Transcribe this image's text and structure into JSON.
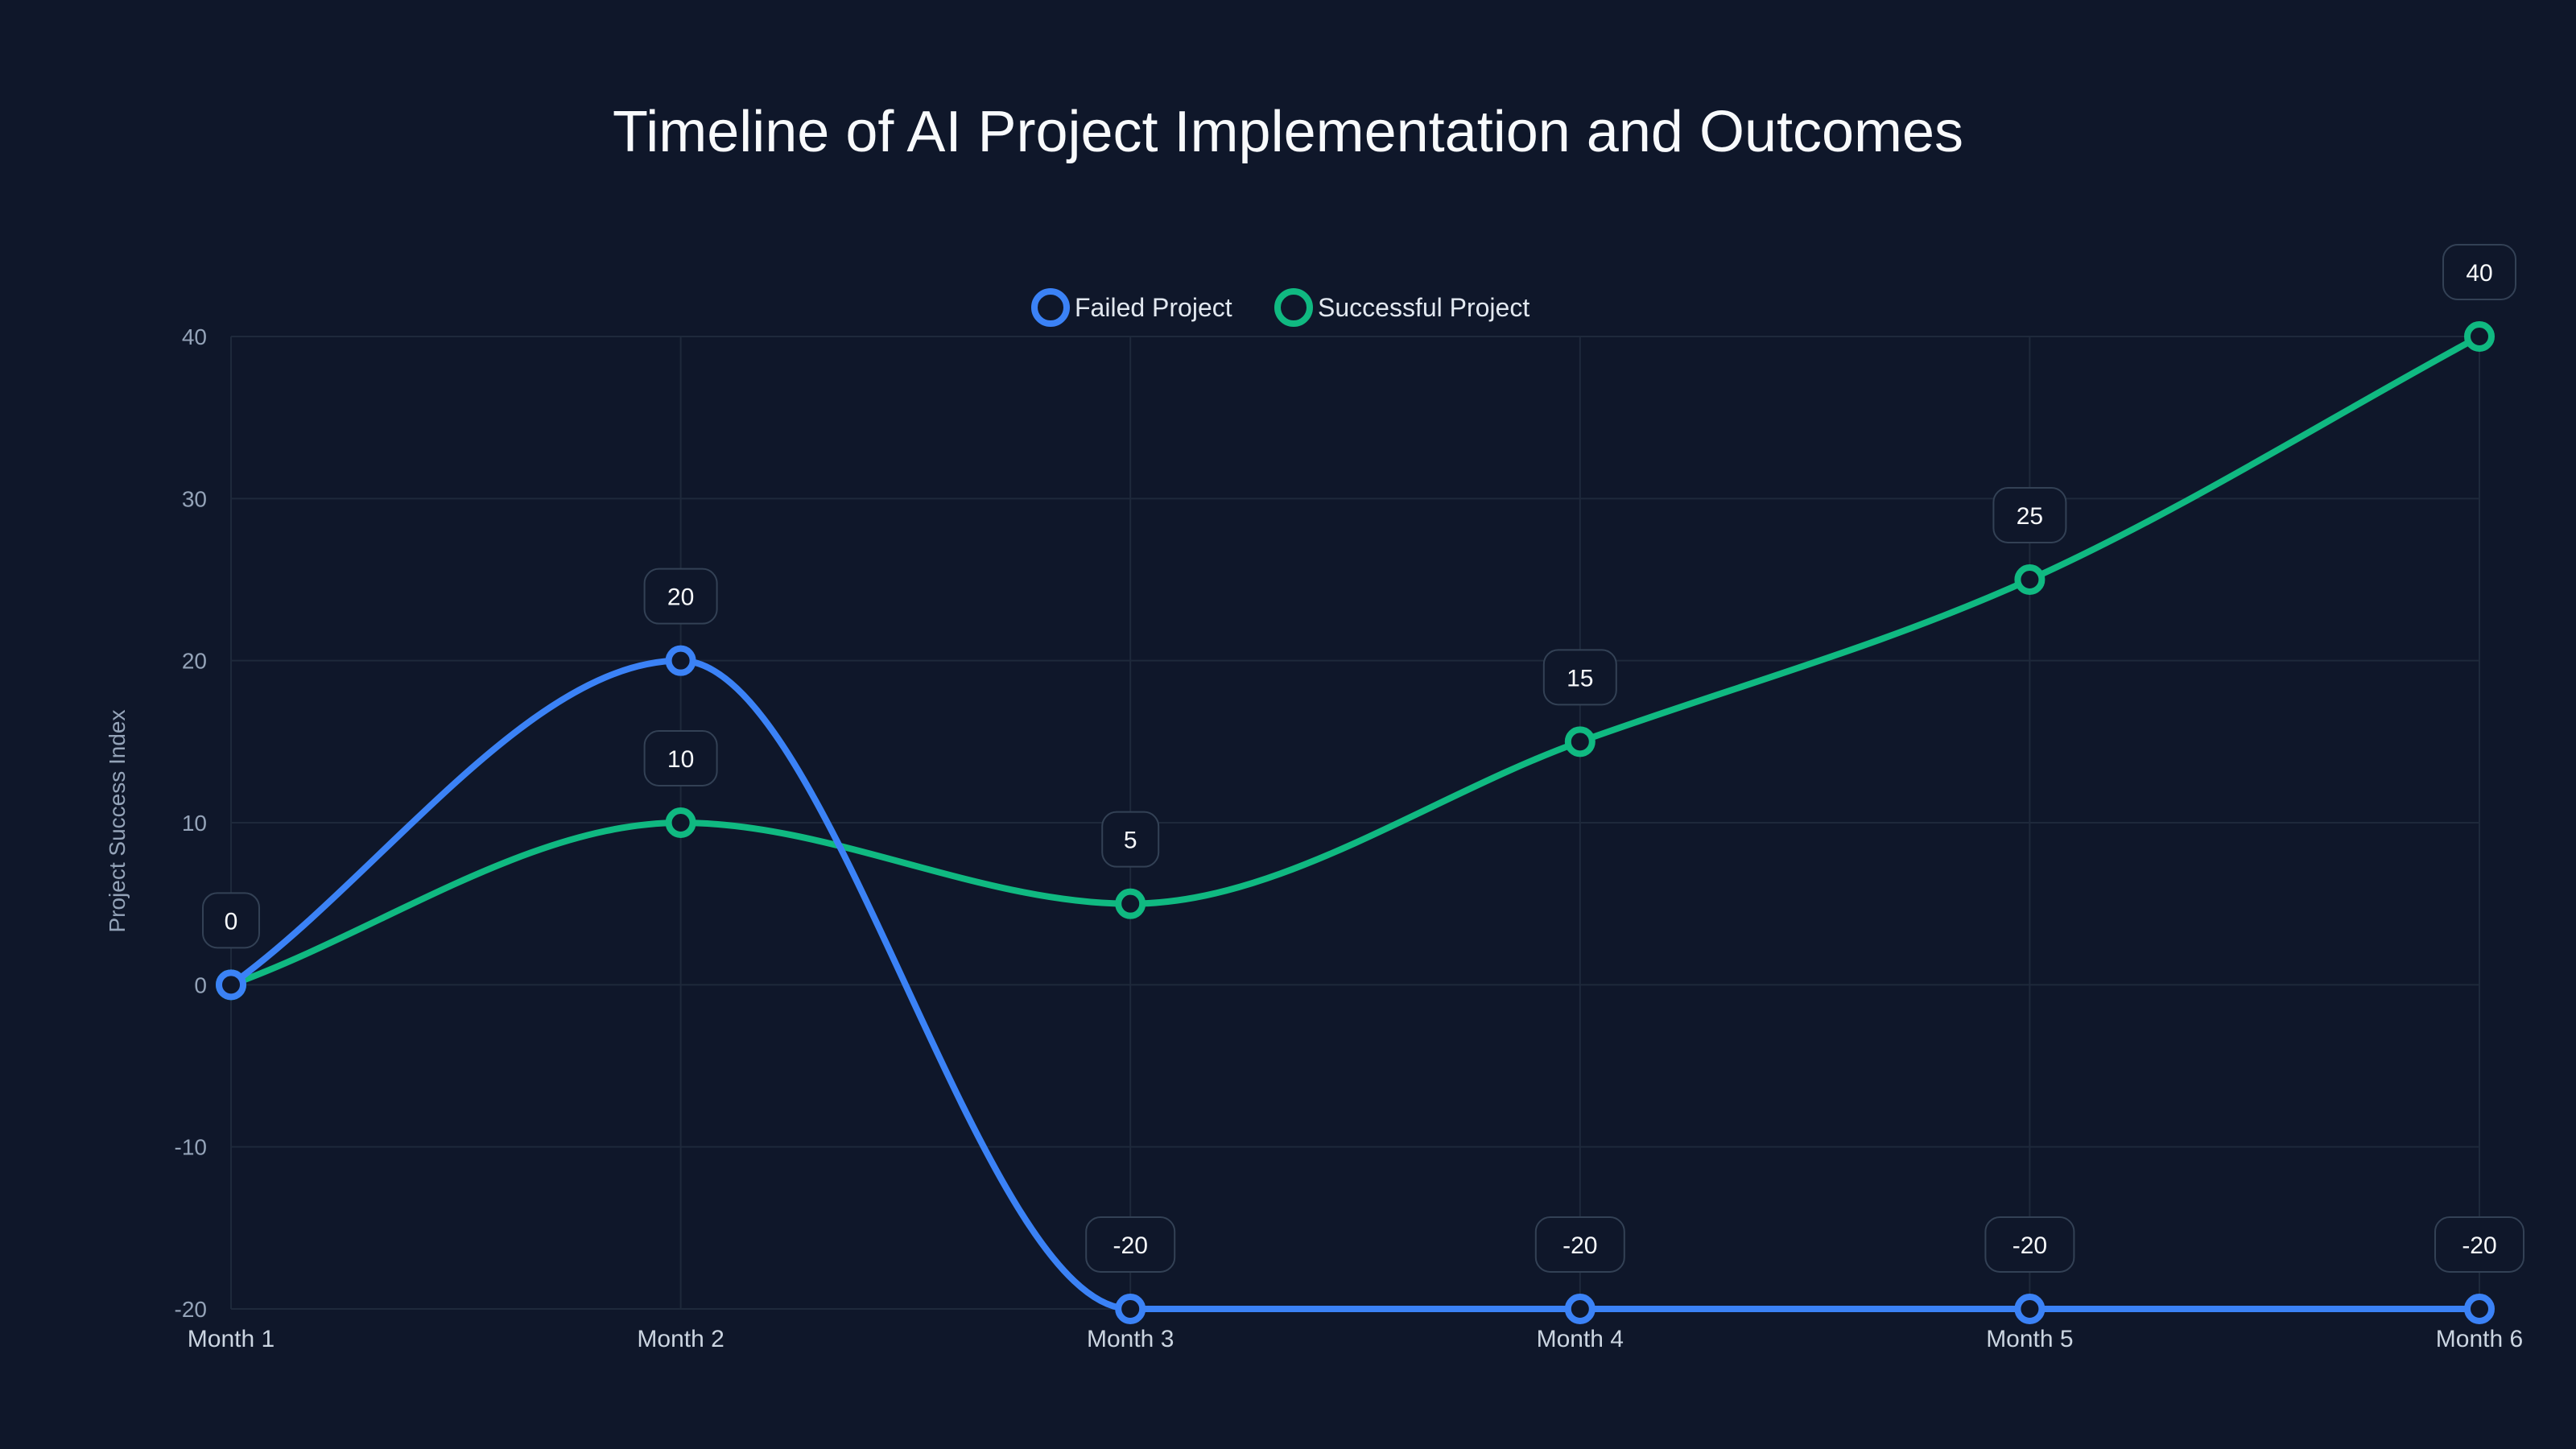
{
  "chart_data": {
    "type": "line",
    "title": "Timeline of AI Project Implementation and Outcomes",
    "xlabel": "",
    "ylabel": "Project Success Index",
    "categories": [
      "Month 1",
      "Month 2",
      "Month 3",
      "Month 4",
      "Month 5",
      "Month 6"
    ],
    "series": [
      {
        "name": "Failed Project",
        "color": "#3b82f6",
        "values": [
          0,
          20,
          -20,
          -20,
          -20,
          -20
        ]
      },
      {
        "name": "Successful Project",
        "color": "#10b981",
        "values": [
          0,
          10,
          5,
          15,
          25,
          40
        ]
      }
    ],
    "ylim": [
      -20,
      40
    ],
    "yticks": [
      -20,
      -10,
      0,
      10,
      20,
      30,
      40
    ],
    "grid": true,
    "legend_position": "top-center",
    "smooth": true,
    "data_labels": true
  },
  "colors": {
    "background": "#0f172a",
    "grid": "#1e293b",
    "label_border": "#334155"
  }
}
